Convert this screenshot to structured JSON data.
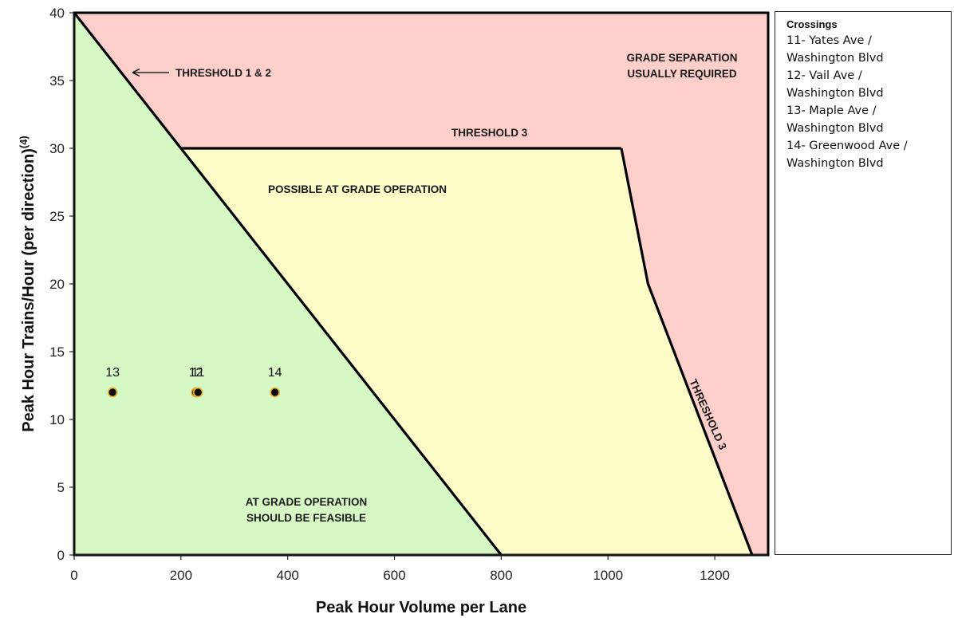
{
  "chart_data": {
    "type": "scatter",
    "xlabel": "Peak Hour Volume per Lane",
    "ylabel_main": "Peak Hour Trains/Hour (per direction)",
    "ylabel_sup": "(4)",
    "xlim": [
      0,
      1300
    ],
    "ylim": [
      0,
      40
    ],
    "xticks": [
      0,
      200,
      400,
      600,
      800,
      1000,
      1200
    ],
    "yticks": [
      0,
      5,
      10,
      15,
      20,
      25,
      30,
      35,
      40
    ],
    "grid": false,
    "regions": [
      {
        "name": "at-grade",
        "color": "#d6f8c5",
        "polygon": [
          [
            0,
            0
          ],
          [
            0,
            40
          ],
          [
            800,
            0
          ]
        ]
      },
      {
        "name": "possible",
        "color": "#fbfcc8",
        "polygon": [
          [
            200,
            30
          ],
          [
            1025,
            30
          ],
          [
            1075,
            20
          ],
          [
            1270,
            0
          ],
          [
            800,
            0
          ]
        ]
      },
      {
        "name": "grade-separation",
        "color": "#fccfcb",
        "polygon": [
          [
            0,
            40
          ],
          [
            1300,
            40
          ],
          [
            1300,
            0
          ],
          [
            1270,
            0
          ],
          [
            1075,
            20
          ],
          [
            1025,
            30
          ],
          [
            200,
            30
          ]
        ]
      }
    ],
    "threshold_lines": [
      {
        "name": "threshold-1-2",
        "points": [
          [
            0,
            40
          ],
          [
            800,
            0
          ]
        ]
      },
      {
        "name": "threshold-3-top",
        "points": [
          [
            200,
            30
          ],
          [
            1025,
            30
          ]
        ]
      },
      {
        "name": "threshold-3-right",
        "points": [
          [
            1025,
            30
          ],
          [
            1075,
            20
          ],
          [
            1270,
            0
          ]
        ]
      }
    ],
    "points": [
      {
        "label": "13",
        "x": 72,
        "y": 12
      },
      {
        "label": "12",
        "x": 228,
        "y": 12
      },
      {
        "label": "11",
        "x": 232,
        "y": 12
      },
      {
        "label": "14",
        "x": 376,
        "y": 12
      }
    ],
    "annotations": {
      "threshold_1_2": "THRESHOLD 1 & 2",
      "threshold_3_top": "THRESHOLD 3",
      "threshold_3_side": "THRESHOLD 3",
      "grade_sep_line1": "GRADE SEPARATION",
      "grade_sep_line2": "USUALLY REQUIRED",
      "possible": "POSSIBLE AT GRADE OPERATION",
      "feasible_line1": "AT GRADE OPERATION",
      "feasible_line2": "SHOULD BE FEASIBLE"
    },
    "colors": {
      "marker_fill": "#0b0b0b",
      "marker_edge": "#e3b23c",
      "line": "#000000"
    }
  },
  "legend": {
    "title": "Crossings",
    "lines": [
      "11- Yates Ave /",
      "Washington Blvd",
      "12- Vail Ave /",
      "Washington Blvd",
      "13- Maple Ave /",
      "Washington Blvd",
      "14- Greenwood Ave /",
      "Washington Blvd"
    ]
  }
}
